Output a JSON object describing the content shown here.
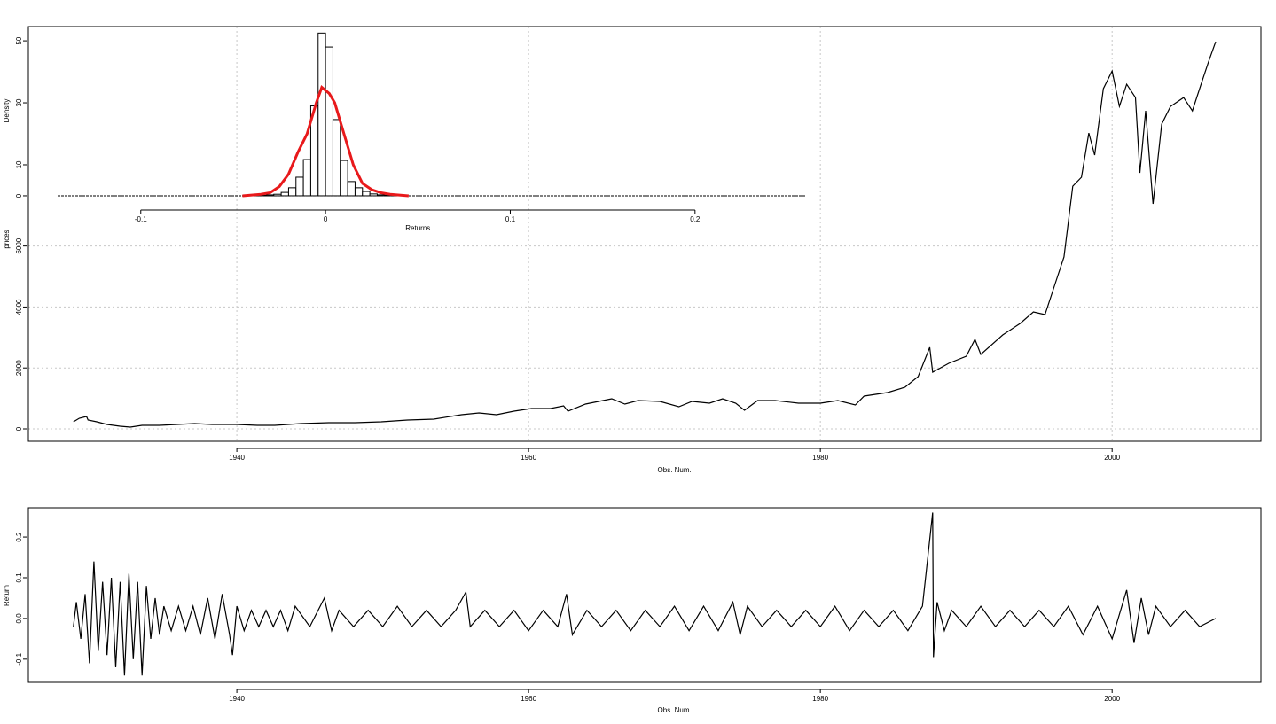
{
  "chart_data": [
    {
      "type": "line",
      "xlabel": "Obs. Num.",
      "ylabel": "prices",
      "color": "#000000",
      "grid": true,
      "xlim": [
        1925.71,
        2010.2
      ],
      "ylim": [
        -407,
        13200
      ],
      "xticks": [
        1940,
        1960,
        1980,
        2000
      ],
      "yticks": [
        0,
        2000,
        4000,
        6000
      ],
      "x": [
        1928.8,
        1929.2,
        1929.7,
        1929.8,
        1930.4,
        1931.1,
        1932.0,
        1932.7,
        1933.5,
        1934.7,
        1935.9,
        1937.1,
        1938.3,
        1940.0,
        1941.4,
        1942.6,
        1944.4,
        1946.3,
        1948.1,
        1949.9,
        1951.7,
        1953.5,
        1955.4,
        1956.6,
        1957.8,
        1959.0,
        1960.2,
        1961.5,
        1962.4,
        1962.7,
        1963.9,
        1965.1,
        1965.7,
        1966.6,
        1967.5,
        1969.0,
        1970.3,
        1971.2,
        1972.4,
        1973.3,
        1974.2,
        1974.8,
        1975.7,
        1976.9,
        1978.5,
        1980.0,
        1981.2,
        1982.4,
        1983.0,
        1984.6,
        1985.8,
        1986.7,
        1987.5,
        1987.7,
        1988.8,
        1990.0,
        1990.6,
        1991.0,
        1992.5,
        1993.7,
        1994.6,
        1995.4,
        1996.1,
        1996.7,
        1997.3,
        1997.9,
        1998.4,
        1998.8,
        1999.4,
        2000.0,
        2000.5,
        2001.0,
        2001.6,
        2001.9,
        2002.3,
        2002.8,
        2003.4,
        2004.0,
        2004.9,
        2005.5,
        2006.1,
        2006.6,
        2007.1
      ],
      "values": [
        233,
        349,
        407,
        291,
        233,
        145,
        87,
        58,
        116,
        116,
        145,
        174,
        145,
        145,
        116,
        116,
        174,
        203,
        203,
        233,
        291,
        320,
        465,
        523,
        465,
        581,
        669,
        669,
        756,
        581,
        814,
        930,
        988,
        814,
        930,
        901,
        727,
        901,
        843,
        988,
        843,
        610,
        930,
        930,
        843,
        843,
        930,
        785,
        1076,
        1192,
        1366,
        1715,
        2674,
        1860,
        2151,
        2384,
        2936,
        2442,
        3081,
        3459,
        3837,
        3750,
        4767,
        5640,
        7965,
        8256,
        9709,
        8983,
        11163,
        11744,
        10581,
        11308,
        10872,
        8401,
        10436,
        7384,
        10000,
        10581,
        10872,
        10436,
        11308,
        12035,
        12703
      ]
    },
    {
      "type": "histogram",
      "xlabel": "Returns",
      "ylabel": "Density",
      "color": "#000000",
      "xlim": [
        -0.145,
        0.2596
      ],
      "ylim": [
        -2.3,
        54.6
      ],
      "xticks": [
        -0.1,
        0,
        0.1,
        0.2
      ],
      "yticks": [
        0,
        10,
        30,
        50
      ],
      "bins": [
        -0.044,
        -0.04,
        -0.036,
        -0.032,
        -0.028,
        -0.024,
        -0.02,
        -0.016,
        -0.012,
        -0.008,
        -0.004,
        0,
        0.004,
        0.008,
        0.012,
        0.016,
        0.02,
        0.024,
        0.028,
        0.032,
        0.036,
        0.04,
        0.044
      ],
      "values": [
        0.1,
        0.1,
        0.2,
        0.3,
        0.5,
        1.1,
        2.6,
        6,
        11.7,
        29,
        52.5,
        48,
        24.6,
        11.4,
        4.6,
        2.6,
        1.4,
        0.6,
        0.3,
        0.2,
        0.1,
        0.1
      ],
      "density": {
        "color": "#e8191b",
        "x": [
          -0.045,
          -0.035,
          -0.03,
          -0.025,
          -0.02,
          -0.015,
          -0.01,
          -0.005,
          -0.002,
          0.002,
          0.005,
          0.01,
          0.015,
          0.02,
          0.025,
          0.03,
          0.035,
          0.045
        ],
        "values": [
          0,
          0.5,
          1,
          3,
          7,
          14,
          20,
          30,
          35,
          33,
          30,
          20,
          10,
          4,
          2,
          1,
          0.5,
          0
        ]
      }
    },
    {
      "type": "line",
      "xlabel": "Obs. Num.",
      "ylabel": "Return",
      "color": "#000000",
      "grid": false,
      "xlim": [
        1925.71,
        2010.2
      ],
      "ylim": [
        -0.157,
        0.272
      ],
      "xticks": [
        1940,
        1960,
        1980,
        2000
      ],
      "yticks": [
        -0.1,
        {
          "value": 0,
          "label": "0.0"
        },
        0.1,
        0.2
      ],
      "x": [
        1928.8,
        1929.0,
        1929.3,
        1929.6,
        1929.9,
        1930.2,
        1930.5,
        1930.8,
        1931.1,
        1931.4,
        1931.7,
        1932.0,
        1932.3,
        1932.6,
        1932.9,
        1933.2,
        1933.5,
        1933.8,
        1934.1,
        1934.4,
        1934.7,
        1935.0,
        1935.5,
        1936.0,
        1936.5,
        1937.0,
        1937.5,
        1938.0,
        1938.5,
        1939.0,
        1939.5,
        1939.7,
        1940.0,
        1940.5,
        1941,
        1941.5,
        1942,
        1942.5,
        1943,
        1943.5,
        1944,
        1945,
        1946,
        1946.5,
        1947,
        1948,
        1949,
        1950,
        1951,
        1952,
        1953,
        1954,
        1955,
        1955.7,
        1956,
        1957,
        1958,
        1959,
        1960,
        1961,
        1962,
        1962.6,
        1963,
        1964,
        1965,
        1966,
        1967,
        1968,
        1969,
        1970,
        1971,
        1972,
        1973,
        1974,
        1974.5,
        1975,
        1976,
        1977,
        1978,
        1979,
        1980,
        1981,
        1982,
        1983,
        1984,
        1985,
        1986,
        1987,
        1987.7,
        1987.75,
        1988,
        1988.5,
        1989,
        1990,
        1991,
        1992,
        1993,
        1994,
        1995,
        1996,
        1997,
        1998,
        1999,
        2000,
        2001,
        2001.5,
        2002,
        2002.5,
        2003,
        2004,
        2005,
        2006,
        2007.1
      ],
      "values": [
        -0.02,
        0.04,
        -0.05,
        0.06,
        -0.11,
        0.14,
        -0.08,
        0.09,
        -0.09,
        0.1,
        -0.12,
        0.09,
        -0.14,
        0.11,
        -0.1,
        0.09,
        -0.14,
        0.08,
        -0.05,
        0.05,
        -0.04,
        0.03,
        -0.03,
        0.03,
        -0.03,
        0.03,
        -0.04,
        0.05,
        -0.05,
        0.06,
        -0.04,
        -0.09,
        0.03,
        -0.03,
        0.02,
        -0.02,
        0.02,
        -0.02,
        0.02,
        -0.03,
        0.03,
        -0.02,
        0.05,
        -0.03,
        0.02,
        -0.02,
        0.02,
        -0.02,
        0.03,
        -0.02,
        0.02,
        -0.02,
        0.02,
        0.065,
        -0.02,
        0.02,
        -0.02,
        0.02,
        -0.03,
        0.02,
        -0.02,
        0.06,
        -0.04,
        0.02,
        -0.02,
        0.02,
        -0.03,
        0.02,
        -0.02,
        0.03,
        -0.03,
        0.03,
        -0.03,
        0.04,
        -0.04,
        0.03,
        -0.02,
        0.02,
        -0.02,
        0.02,
        -0.02,
        0.03,
        -0.03,
        0.02,
        -0.02,
        0.02,
        -0.03,
        0.03,
        0.26,
        -0.095,
        0.04,
        -0.03,
        0.02,
        -0.02,
        0.03,
        -0.02,
        0.02,
        -0.02,
        0.02,
        -0.02,
        0.03,
        -0.04,
        0.03,
        -0.05,
        0.07,
        -0.06,
        0.05,
        -0.04,
        0.03,
        -0.02,
        0.02,
        -0.02,
        0
      ]
    }
  ]
}
